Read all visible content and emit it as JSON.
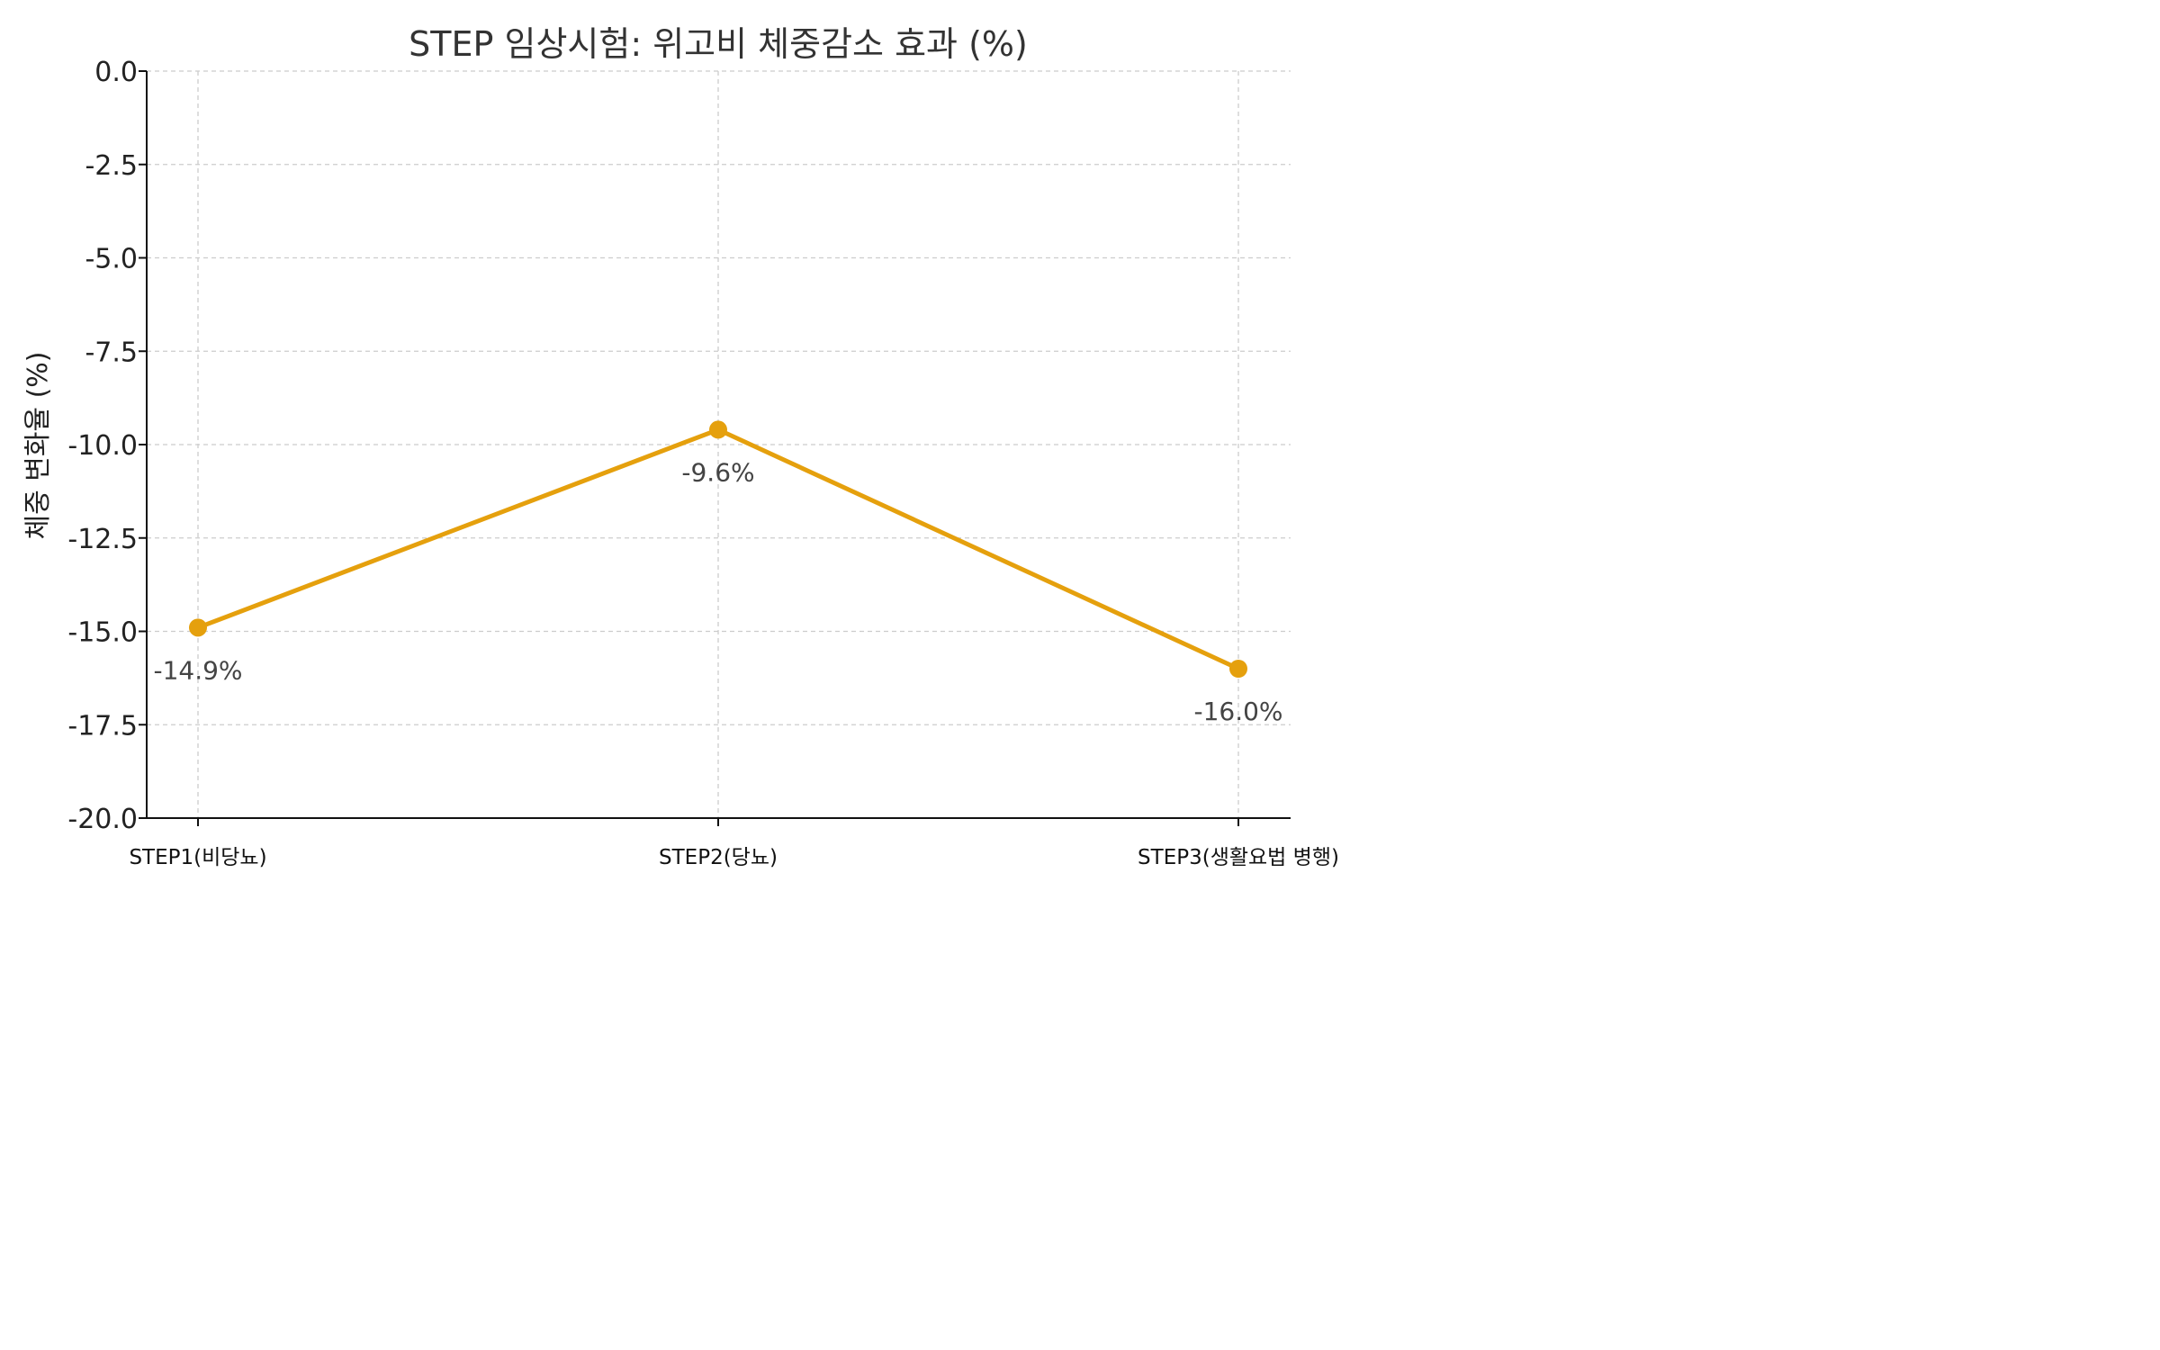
{
  "chart_data": {
    "type": "line",
    "title": "STEP 임상시험: 위고비 체중감소 효과 (%)",
    "xlabel": "",
    "ylabel": "체중 변화율 (%)",
    "categories": [
      "STEP1(비당뇨)",
      "STEP2(당뇨)",
      "STEP3(생활요법 병행)"
    ],
    "series": [
      {
        "values": [
          -14.9,
          -9.6,
          -16.0
        ],
        "color": "#e5a00d"
      }
    ],
    "data_labels": [
      "-14.9%",
      "-9.6%",
      "-16.0%"
    ],
    "ylim": [
      -20.0,
      0.0
    ],
    "yticks": [
      "0.0",
      "-2.5",
      "-5.0",
      "-7.5",
      "-10.0",
      "-12.5",
      "-15.0",
      "-17.5",
      "-20.0"
    ],
    "ytick_values": [
      0.0,
      -2.5,
      -5.0,
      -7.5,
      -10.0,
      -12.5,
      -15.0,
      -17.5,
      -20.0
    ],
    "grid": true,
    "legend": "none"
  }
}
